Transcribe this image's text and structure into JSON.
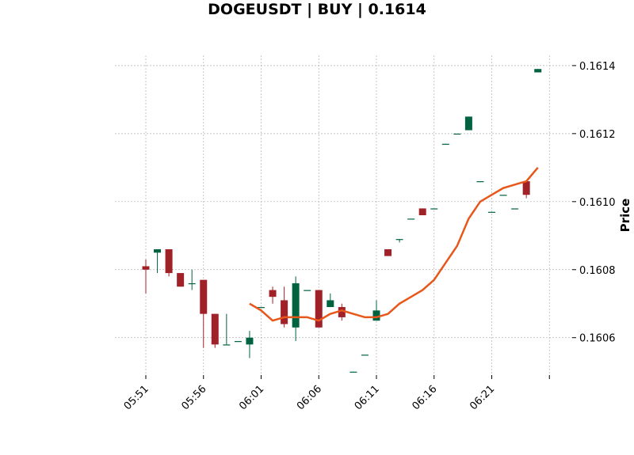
{
  "chart_data": {
    "type": "candlestick",
    "title": "DOGEUSDT | BUY | 0.1614",
    "xlabel": "",
    "ylabel": "Price",
    "ylim": [
      0.16049,
      0.16143
    ],
    "grid": true,
    "legend": "none",
    "colors": {
      "up": "#006340",
      "down": "#a02128",
      "ma_line": "#e8571a",
      "grid": "#b0b0b0"
    },
    "x_ticks": [
      "05:51",
      "05:56",
      "06:01",
      "06:06",
      "06:11",
      "06:16",
      "06:21",
      ""
    ],
    "y_ticks": [
      "0.1606",
      "0.1608",
      "0.1610",
      "0.1612",
      "0.1614"
    ],
    "y_tick_values": [
      0.1606,
      0.1608,
      0.161,
      0.1612,
      0.1614
    ],
    "times": [
      "05:51",
      "05:52",
      "05:53",
      "05:54",
      "05:55",
      "05:56",
      "05:57",
      "05:58",
      "05:59",
      "06:00",
      "06:01",
      "06:02",
      "06:03",
      "06:04",
      "06:05",
      "06:06",
      "06:07",
      "06:08",
      "06:09",
      "06:10",
      "06:11",
      "06:12",
      "06:13",
      "06:14",
      "06:15",
      "06:16",
      "06:17",
      "06:18",
      "06:19",
      "06:20",
      "06:21",
      "06:22",
      "06:23",
      "06:24",
      "06:25"
    ],
    "candles": [
      {
        "o": 0.16081,
        "h": 0.16083,
        "l": 0.16073,
        "c": 0.1608
      },
      {
        "o": 0.16085,
        "h": 0.16086,
        "l": 0.16079,
        "c": 0.16086
      },
      {
        "o": 0.16086,
        "h": 0.16086,
        "l": 0.16078,
        "c": 0.16079
      },
      {
        "o": 0.16079,
        "h": 0.16079,
        "l": 0.16075,
        "c": 0.16075
      },
      {
        "o": 0.16076,
        "h": 0.1608,
        "l": 0.16074,
        "c": 0.16076
      },
      {
        "o": 0.16077,
        "h": 0.16077,
        "l": 0.16057,
        "c": 0.16067
      },
      {
        "o": 0.16067,
        "h": 0.16067,
        "l": 0.16057,
        "c": 0.16058
      },
      {
        "o": 0.16058,
        "h": 0.16067,
        "l": 0.16058,
        "c": 0.16058
      },
      {
        "o": 0.16059,
        "h": 0.16059,
        "l": 0.16059,
        "c": 0.16059
      },
      {
        "o": 0.16058,
        "h": 0.16062,
        "l": 0.16054,
        "c": 0.1606
      },
      {
        "o": 0.16069,
        "h": 0.16069,
        "l": 0.16069,
        "c": 0.16069
      },
      {
        "o": 0.16074,
        "h": 0.16075,
        "l": 0.1607,
        "c": 0.16072
      },
      {
        "o": 0.16071,
        "h": 0.16075,
        "l": 0.16063,
        "c": 0.16064
      },
      {
        "o": 0.16063,
        "h": 0.16078,
        "l": 0.16059,
        "c": 0.16076
      },
      {
        "o": 0.16074,
        "h": 0.16074,
        "l": 0.16074,
        "c": 0.16074
      },
      {
        "o": 0.16074,
        "h": 0.16074,
        "l": 0.16063,
        "c": 0.16063
      },
      {
        "o": 0.16069,
        "h": 0.16073,
        "l": 0.16069,
        "c": 0.16071
      },
      {
        "o": 0.16069,
        "h": 0.1607,
        "l": 0.16065,
        "c": 0.16066
      },
      {
        "o": 0.1605,
        "h": 0.1605,
        "l": 0.1605,
        "c": 0.1605
      },
      {
        "o": 0.16055,
        "h": 0.16055,
        "l": 0.16055,
        "c": 0.16055
      },
      {
        "o": 0.16065,
        "h": 0.16071,
        "l": 0.16065,
        "c": 0.16068
      },
      {
        "o": 0.16086,
        "h": 0.16086,
        "l": 0.16084,
        "c": 0.16084
      },
      {
        "o": 0.16089,
        "h": 0.16089,
        "l": 0.16088,
        "c": 0.16089
      },
      {
        "o": 0.16095,
        "h": 0.16095,
        "l": 0.16095,
        "c": 0.16095
      },
      {
        "o": 0.16098,
        "h": 0.16098,
        "l": 0.16096,
        "c": 0.16096
      },
      {
        "o": 0.16098,
        "h": 0.16098,
        "l": 0.16098,
        "c": 0.16098
      },
      {
        "o": 0.16117,
        "h": 0.16117,
        "l": 0.16117,
        "c": 0.16117
      },
      {
        "o": 0.1612,
        "h": 0.1612,
        "l": 0.1612,
        "c": 0.1612
      },
      {
        "o": 0.16121,
        "h": 0.16125,
        "l": 0.16121,
        "c": 0.16125
      },
      {
        "o": 0.16106,
        "h": 0.16106,
        "l": 0.16106,
        "c": 0.16106
      },
      {
        "o": 0.16097,
        "h": 0.16097,
        "l": 0.16097,
        "c": 0.16097
      },
      {
        "o": 0.16102,
        "h": 0.16102,
        "l": 0.16102,
        "c": 0.16102
      },
      {
        "o": 0.16098,
        "h": 0.16098,
        "l": 0.16098,
        "c": 0.16098
      },
      {
        "o": 0.16106,
        "h": 0.16106,
        "l": 0.16101,
        "c": 0.16102
      },
      {
        "o": 0.16138,
        "h": 0.16139,
        "l": 0.16138,
        "c": 0.16139
      }
    ],
    "series": [
      {
        "start_index": 9,
        "values": [
          0.1607,
          0.16068,
          0.16065,
          0.16066,
          0.16066,
          0.16066,
          0.16065,
          0.16067,
          0.16068,
          0.16067,
          0.16066,
          0.16066,
          0.16067,
          0.1607,
          0.16072,
          0.16074,
          0.16077,
          0.16082,
          0.16087,
          0.16095,
          0.161,
          0.16102,
          0.16104,
          0.16105,
          0.16106,
          0.1611
        ]
      }
    ]
  }
}
